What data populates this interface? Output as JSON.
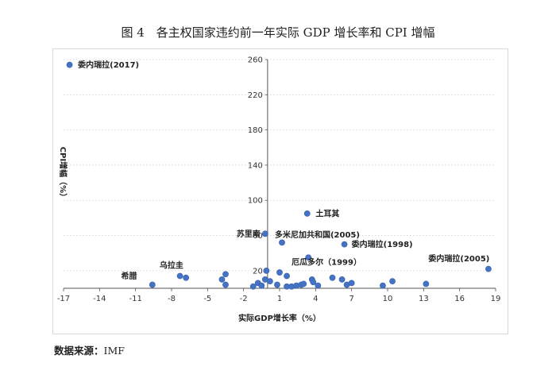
{
  "figure_title": "图 4　各主权国家违约前一年实际 GDP 增长率和 CPI 增幅",
  "source_label": "数据来源：",
  "source_value": "IMF",
  "chart_data": {
    "type": "scatter",
    "xlabel": "实际GDP增长率（%）",
    "ylabel": "CPI增幅（%）",
    "xlim": [
      -17,
      19
    ],
    "ylim": [
      0,
      260
    ],
    "x_ticks": [
      -17,
      -14,
      -11,
      -8,
      -5,
      -2,
      1,
      4,
      7,
      10,
      13,
      16,
      19
    ],
    "y_ticks": [
      20,
      60,
      100,
      140,
      180,
      220,
      260
    ],
    "grid": "horizontal dotted",
    "marker_color": "#4472C4",
    "points": [
      {
        "x": -16.5,
        "y": 254
      },
      {
        "x": -9.6,
        "y": 4
      },
      {
        "x": -7.3,
        "y": 14
      },
      {
        "x": -6.8,
        "y": 12
      },
      {
        "x": -3.8,
        "y": 10
      },
      {
        "x": -3.5,
        "y": 16
      },
      {
        "x": -3.5,
        "y": 4
      },
      {
        "x": -1.2,
        "y": 2
      },
      {
        "x": -0.8,
        "y": 6
      },
      {
        "x": -0.5,
        "y": 3
      },
      {
        "x": -0.2,
        "y": 10
      },
      {
        "x": -0.1,
        "y": 20
      },
      {
        "x": -0.2,
        "y": 62
      },
      {
        "x": 0.2,
        "y": 8
      },
      {
        "x": 0.8,
        "y": 4
      },
      {
        "x": 1.0,
        "y": 18
      },
      {
        "x": 1.2,
        "y": 52
      },
      {
        "x": 1.6,
        "y": 14
      },
      {
        "x": 1.6,
        "y": 2
      },
      {
        "x": 2.0,
        "y": 2
      },
      {
        "x": 2.4,
        "y": 3
      },
      {
        "x": 2.8,
        "y": 4
      },
      {
        "x": 3.0,
        "y": 5
      },
      {
        "x": 3.3,
        "y": 85
      },
      {
        "x": 3.4,
        "y": 35
      },
      {
        "x": 3.7,
        "y": 10
      },
      {
        "x": 3.8,
        "y": 7
      },
      {
        "x": 4.2,
        "y": 3
      },
      {
        "x": 5.4,
        "y": 12
      },
      {
        "x": 6.2,
        "y": 10
      },
      {
        "x": 6.4,
        "y": 50
      },
      {
        "x": 6.6,
        "y": 4
      },
      {
        "x": 7.0,
        "y": 6
      },
      {
        "x": 9.6,
        "y": 3
      },
      {
        "x": 10.4,
        "y": 8
      },
      {
        "x": 13.2,
        "y": 5
      },
      {
        "x": 18.4,
        "y": 22
      }
    ],
    "annotations": [
      {
        "text": "委内瑞拉(2017)",
        "x": -15.8,
        "y": 254,
        "anchor": "start"
      },
      {
        "text": "土耳其",
        "x": 4.0,
        "y": 85,
        "anchor": "start"
      },
      {
        "text": "苏里南",
        "x": -0.6,
        "y": 62,
        "anchor": "end"
      },
      {
        "text": "多米尼加共和国(2005)",
        "x": 0.6,
        "y": 61,
        "anchor": "start"
      },
      {
        "text": "委内瑞拉(1998)",
        "x": 7.0,
        "y": 50,
        "anchor": "start"
      },
      {
        "text": "厄瓜多尔（1999）",
        "x": 2.0,
        "y": 30,
        "anchor": "start"
      },
      {
        "text": "委内瑞拉(2005)",
        "x": 13.4,
        "y": 34,
        "anchor": "start"
      },
      {
        "text": "乌拉圭",
        "x": -9.0,
        "y": 26,
        "anchor": "start"
      },
      {
        "text": "希腊",
        "x": -12.2,
        "y": 14,
        "anchor": "start"
      }
    ]
  }
}
